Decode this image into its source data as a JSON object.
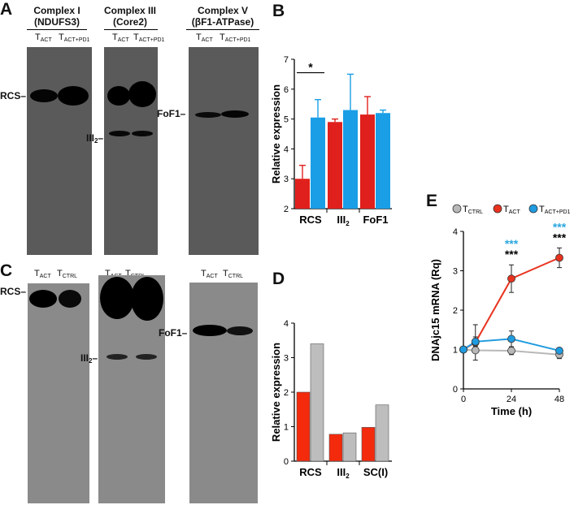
{
  "panels": {
    "A": "A",
    "B": "B",
    "C": "C",
    "D": "D",
    "E": "E"
  },
  "blot_a": {
    "headers": [
      {
        "line1": "Complex I",
        "line2": "(NDUFS3)"
      },
      {
        "line1": "Complex III",
        "line2": "(Core2)"
      },
      {
        "line1": "Complex V",
        "line2": "(βF1-ATPase)"
      }
    ],
    "lane_main": "T",
    "lane_sub_act": "ACT",
    "lane_sub_act_pd1": "ACT+PD1",
    "markers": {
      "rcs": "RCS",
      "iii": "III",
      "iii_sub": "2",
      "fof1": "FoF1"
    }
  },
  "blot_c": {
    "lane_main": "T",
    "lane_sub_act": "ACT",
    "lane_sub_ctrl": "CTRL",
    "markers": {
      "rcs": "RCS",
      "iii": "III",
      "iii_sub": "2",
      "fof1": "FoF1"
    }
  },
  "chart_data": [
    {
      "panel": "B",
      "type": "bar",
      "categories": [
        "RCS",
        "III2",
        "FoF1"
      ],
      "category_labels": [
        {
          "main": "RCS",
          "sub": ""
        },
        {
          "main": "III",
          "sub": "2"
        },
        {
          "main": "FoF1",
          "sub": ""
        }
      ],
      "series": [
        {
          "values": [
            3.0,
            4.9,
            5.15
          ],
          "errors": [
            0.45,
            0.1,
            0.6
          ],
          "color": "#e0201c"
        },
        {
          "values": [
            5.05,
            5.3,
            5.2
          ],
          "errors": [
            0.6,
            1.2,
            0.1
          ],
          "color": "#1a9ee6"
        }
      ],
      "ylabel": "Relative expression",
      "ylim": [
        2,
        7
      ],
      "yticks": [
        2,
        3,
        4,
        5,
        6,
        7
      ],
      "annotations": [
        {
          "text": "*",
          "between": [
            "RCS",
            "RCS"
          ]
        }
      ]
    },
    {
      "panel": "D",
      "type": "bar",
      "categories": [
        "RCS",
        "III2",
        "SC(I)"
      ],
      "category_labels": [
        {
          "main": "RCS",
          "sub": ""
        },
        {
          "main": "III",
          "sub": "2"
        },
        {
          "main": "SC(I)",
          "sub": ""
        }
      ],
      "series": [
        {
          "values": [
            2.0,
            0.78,
            0.98
          ],
          "color": "#f42a0c"
        },
        {
          "values": [
            3.4,
            0.82,
            1.63
          ],
          "color": "#bdbdbd"
        }
      ],
      "ylabel": "Relative expression",
      "ylim": [
        0,
        4
      ],
      "yticks": [
        0,
        1,
        2,
        3,
        4
      ]
    },
    {
      "panel": "E",
      "type": "line",
      "x": [
        0,
        6,
        24,
        48
      ],
      "series": [
        {
          "name_main": "T",
          "name_sub": "CTRL",
          "values": [
            1.0,
            0.98,
            0.97,
            0.87
          ],
          "errors": [
            0,
            0,
            0.1,
            0.1
          ],
          "color": "#b8b8b8"
        },
        {
          "name_main": "T",
          "name_sub": "ACT",
          "values": [
            1.0,
            1.18,
            2.8,
            3.33
          ],
          "errors": [
            0,
            0.45,
            0.35,
            0.25
          ],
          "color": "#e8321e"
        },
        {
          "name_main": "T",
          "name_sub": "ACT+PD1",
          "values": [
            1.0,
            1.2,
            1.27,
            0.97
          ],
          "errors": [
            0,
            0.12,
            0.2,
            0.07
          ],
          "color": "#1f9be0"
        }
      ],
      "xlabel": "Time (h)",
      "ylabel": "DNAjc15 mRNA (Rq)",
      "xlim": [
        0,
        48
      ],
      "ylim": [
        0,
        4
      ],
      "xticks": [
        0,
        24,
        48
      ],
      "yticks": [
        0,
        1,
        2,
        3,
        4
      ],
      "annotations": [
        {
          "x": 24,
          "text": "***",
          "color": "#2aa7e0"
        },
        {
          "x": 24,
          "text": "***",
          "color": "#000000"
        },
        {
          "x": 48,
          "text": "***",
          "color": "#2aa7e0"
        },
        {
          "x": 48,
          "text": "***",
          "color": "#000000"
        }
      ],
      "legend": "top"
    }
  ]
}
